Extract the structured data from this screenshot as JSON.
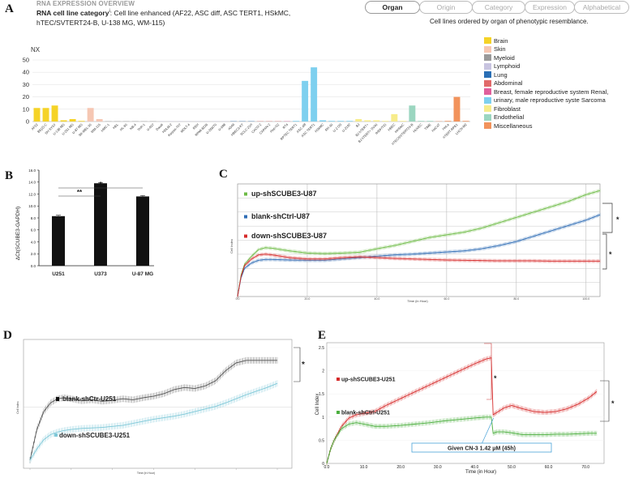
{
  "panel_a": {
    "letter": "A",
    "overview_label": "RNA EXPRESSION OVERVIEW",
    "category_label": "RNA cell line category",
    "category_sup": "i",
    "category_text": ": Cell line enhanced (AF22, ASC diff, ASC TERT1, HSkMC,",
    "category_text_2": "hTEC/SVTERT24-B, U-138 MG, WM-115)",
    "tabs": [
      {
        "label": "Organ",
        "active": true
      },
      {
        "label": "Origin",
        "active": false
      },
      {
        "label": "Category",
        "active": false
      },
      {
        "label": "Expression",
        "active": false
      },
      {
        "label": "Alphabetical",
        "active": false
      }
    ],
    "ordered_note": "Cell lines ordered by organ of phenotypic resemblance.",
    "legend": [
      {
        "label": "Brain",
        "color": "#f5d327"
      },
      {
        "label": "Skin",
        "color": "#f6c7b3"
      },
      {
        "label": "Myeloid",
        "color": "#9a9a9a"
      },
      {
        "label": "Lymphoid",
        "color": "#c8c4e0"
      },
      {
        "label": "Lung",
        "color": "#2a6fb5"
      },
      {
        "label": "Abdominal",
        "color": "#e16a6a"
      },
      {
        "label": "Breast, female reproductive system  Renal,",
        "color": "#e0609c"
      },
      {
        "label": "urinary, male reproductive syste  Sarcoma",
        "color": "#7ed0ef"
      },
      {
        "label": "Fibroblast",
        "color": "#f7ec8b"
      },
      {
        "label": "Endothelial",
        "color": "#9bd6c0"
      },
      {
        "label": "Miscellaneous",
        "color": "#f2935c"
      }
    ]
  },
  "chart_data": [
    {
      "id": "A",
      "type": "bar",
      "ylabel": "NX",
      "ylim": [
        0,
        50
      ],
      "yticks": [
        0,
        10,
        20,
        30,
        40,
        50
      ],
      "categories": [
        "AF22",
        "BE(2)-C",
        "SH-SY5Y",
        "U-138 MG",
        "U-251 MG",
        "U-87 MG",
        "SK-MEL-30",
        "WM-115",
        "HMC-1",
        "HEL",
        "HL-60",
        "NB-4",
        "THP-1",
        "U-937",
        "Daudi",
        "HDLM-2",
        "Karpas-707",
        "MOLT-4",
        "REH",
        "RPMI-8226",
        "U-266/70",
        "U-698",
        "A549",
        "HBEC3-KT",
        "SCLC-21H",
        "CACO-2",
        "CAPAN-2",
        "Hep-G2",
        "RT4",
        "RPTEC TERT1",
        "ASC diff",
        "ASC TERT1",
        "HSkMC",
        "RH-30",
        "U-2 OS",
        "U-2197",
        "BJ",
        "BJ hTERT+",
        "BJ hTERT+ SV40",
        "fHDF/TIG",
        "HBEC",
        "HHSteC",
        "hTEC/SVTERT24-B",
        "HUVEC",
        "TIME",
        "HaCaT",
        "HeLa",
        "hTERT-RPE1",
        "LHCN-M2"
      ],
      "values": [
        11,
        11,
        13,
        1,
        2,
        0.5,
        11,
        2,
        0.2,
        0.2,
        0.2,
        0.2,
        0.2,
        0.2,
        0.2,
        0.2,
        0.2,
        0.2,
        0.2,
        0.2,
        0.2,
        0.2,
        0.2,
        0.2,
        0.2,
        0.2,
        0.2,
        0.2,
        0.2,
        0.5,
        33,
        44,
        1,
        0.5,
        0.5,
        0.5,
        2,
        1,
        1,
        0.5,
        6,
        0.5,
        13,
        0.5,
        0.5,
        0.2,
        0.5,
        20,
        0.5
      ],
      "colors": [
        "#f5d327",
        "#f5d327",
        "#f5d327",
        "#f5d327",
        "#f5d327",
        "#f5d327",
        "#f6c7b3",
        "#f6c7b3",
        "#9a9a9a",
        "#9a9a9a",
        "#9a9a9a",
        "#9a9a9a",
        "#9a9a9a",
        "#9a9a9a",
        "#c8c4e0",
        "#c8c4e0",
        "#c8c4e0",
        "#c8c4e0",
        "#c8c4e0",
        "#c8c4e0",
        "#c8c4e0",
        "#c8c4e0",
        "#2a6fb5",
        "#2a6fb5",
        "#2a6fb5",
        "#e16a6a",
        "#e16a6a",
        "#e16a6a",
        "#e0609c",
        "#7ed0ef",
        "#7ed0ef",
        "#7ed0ef",
        "#7ed0ef",
        "#7ed0ef",
        "#7ed0ef",
        "#7ed0ef",
        "#f7ec8b",
        "#f7ec8b",
        "#f7ec8b",
        "#f7ec8b",
        "#f7ec8b",
        "#f7ec8b",
        "#9bd6c0",
        "#9bd6c0",
        "#9bd6c0",
        "#f2935c",
        "#f2935c",
        "#f2935c",
        "#f2935c"
      ]
    },
    {
      "id": "B",
      "type": "bar",
      "ylabel": "ΔCt(SCUBE3-GAPDH)",
      "ylim": [
        0,
        16
      ],
      "yticks": [
        "0.0",
        "2.0",
        "4.0",
        "6.0",
        "8.0",
        "10.0",
        "12.0",
        "14.0",
        "16.0"
      ],
      "categories": [
        "U251",
        "U373",
        "U-87 MG"
      ],
      "values": [
        8.3,
        13.8,
        11.6
      ],
      "errors": [
        0.15,
        0.1,
        0.15
      ],
      "significance": [
        {
          "from": 0,
          "to": 1,
          "label": "**"
        },
        {
          "from": 0,
          "to": 2,
          "label": "*"
        }
      ],
      "color": "#111111"
    },
    {
      "id": "C",
      "type": "line",
      "xlabel": "Time (in Hour)",
      "ylabel": "Cell Index",
      "xticks": [
        "0.0",
        "20.0",
        "40.0",
        "60.0",
        "80.0",
        "100.0"
      ],
      "series": [
        {
          "name": "up-shSCUBE3-U87",
          "color": "#6dbb45",
          "x": [
            0,
            1,
            2,
            4,
            6,
            8,
            10,
            15,
            20,
            25,
            30,
            35,
            40,
            45,
            50,
            55,
            60,
            65,
            70,
            75,
            80,
            85,
            90,
            95,
            100,
            104
          ],
          "y": [
            0,
            0.8,
            1.2,
            1.5,
            1.75,
            1.82,
            1.8,
            1.7,
            1.62,
            1.6,
            1.62,
            1.65,
            1.78,
            1.9,
            2.05,
            2.2,
            2.3,
            2.4,
            2.55,
            2.75,
            2.95,
            3.15,
            3.35,
            3.55,
            3.8,
            3.95
          ]
        },
        {
          "name": "blank-shCtrl-U87",
          "color": "#2f6db5",
          "x": [
            0,
            1,
            2,
            4,
            6,
            8,
            10,
            15,
            20,
            25,
            30,
            35,
            40,
            45,
            50,
            55,
            60,
            65,
            70,
            75,
            80,
            85,
            90,
            95,
            100,
            104
          ],
          "y": [
            0,
            0.7,
            1.05,
            1.25,
            1.35,
            1.38,
            1.38,
            1.36,
            1.35,
            1.35,
            1.4,
            1.45,
            1.5,
            1.55,
            1.58,
            1.62,
            1.66,
            1.7,
            1.78,
            1.9,
            2.05,
            2.25,
            2.45,
            2.65,
            2.85,
            3.05
          ]
        },
        {
          "name": "down-shSCUBE3-U87",
          "color": "#d62b2b",
          "x": [
            0,
            1,
            2,
            4,
            6,
            8,
            10,
            15,
            20,
            25,
            30,
            35,
            40,
            45,
            50,
            55,
            60,
            65,
            70,
            75,
            80,
            85,
            90,
            95,
            100,
            104
          ],
          "y": [
            0,
            0.75,
            1.15,
            1.4,
            1.55,
            1.58,
            1.55,
            1.45,
            1.4,
            1.4,
            1.45,
            1.48,
            1.45,
            1.42,
            1.4,
            1.38,
            1.36,
            1.35,
            1.34,
            1.33,
            1.33,
            1.33,
            1.32,
            1.32,
            1.32,
            1.32
          ]
        }
      ],
      "significance": [
        "*",
        "*"
      ]
    },
    {
      "id": "D",
      "type": "line",
      "xlabel": "Time (in Hour)",
      "ylabel": "Cell Index",
      "series": [
        {
          "name": "blank-shCtr-U251",
          "color": "#555555",
          "x": [
            0,
            2,
            4,
            6,
            8,
            10,
            12,
            15,
            18,
            21,
            24,
            27,
            30,
            33,
            36,
            39,
            42,
            45,
            48,
            51,
            54,
            57,
            60,
            63,
            66,
            69,
            72
          ],
          "y": [
            0,
            0.6,
            0.95,
            1.12,
            1.2,
            1.22,
            1.2,
            1.16,
            1.18,
            1.15,
            1.17,
            1.2,
            1.18,
            1.22,
            1.25,
            1.3,
            1.38,
            1.42,
            1.4,
            1.45,
            1.55,
            1.75,
            1.9,
            1.95,
            1.95,
            1.95,
            1.95
          ]
        },
        {
          "name": "down-shSCUBE3-U251",
          "color": "#7fc8d8",
          "x": [
            0,
            2,
            4,
            6,
            8,
            10,
            12,
            15,
            18,
            21,
            24,
            27,
            30,
            33,
            36,
            39,
            42,
            45,
            48,
            51,
            54,
            57,
            60,
            63,
            66,
            69,
            72
          ],
          "y": [
            0,
            0.22,
            0.4,
            0.5,
            0.55,
            0.58,
            0.6,
            0.62,
            0.63,
            0.64,
            0.66,
            0.68,
            0.72,
            0.76,
            0.8,
            0.83,
            0.86,
            0.9,
            0.95,
            1.0,
            1.05,
            1.12,
            1.2,
            1.28,
            1.35,
            1.42,
            1.5
          ]
        }
      ],
      "significance": [
        "*"
      ]
    },
    {
      "id": "E",
      "type": "line",
      "xlabel": "Time (in Hour)",
      "ylabel": "Cell Index",
      "ylim": [
        0,
        2.5
      ],
      "yticks": [
        "0",
        "0.5",
        "1",
        "1.5",
        "2",
        "2.5"
      ],
      "xticks": [
        "0.0",
        "10.0",
        "20.0",
        "30.0",
        "40.0",
        "50.0",
        "60.0",
        "70.0"
      ],
      "annotation": "Given CN-3 1.42 μM (45h)",
      "series": [
        {
          "name": "up-shSCUBE3-U251",
          "color": "#d62b2b",
          "x": [
            0,
            1,
            2,
            4,
            6,
            8,
            10,
            13,
            16,
            20,
            24,
            28,
            32,
            36,
            40,
            43,
            44.5,
            45,
            46,
            48,
            50,
            53,
            56,
            59,
            62,
            65,
            68,
            71,
            73
          ],
          "y": [
            0,
            0.3,
            0.5,
            0.8,
            0.98,
            1.05,
            1.08,
            1.12,
            1.25,
            1.4,
            1.55,
            1.7,
            1.85,
            2.0,
            2.15,
            2.25,
            2.28,
            1.05,
            1.1,
            1.2,
            1.25,
            1.18,
            1.12,
            1.1,
            1.12,
            1.18,
            1.28,
            1.42,
            1.55
          ]
        },
        {
          "name": "blank-shCtrl-U251",
          "color": "#4caf3f",
          "x": [
            0,
            1,
            2,
            4,
            6,
            8,
            10,
            13,
            16,
            20,
            24,
            28,
            32,
            36,
            40,
            43,
            44.5,
            45,
            46,
            48,
            50,
            53,
            56,
            59,
            62,
            65,
            68,
            71,
            73
          ],
          "y": [
            0,
            0.3,
            0.5,
            0.75,
            0.85,
            0.88,
            0.85,
            0.8,
            0.8,
            0.82,
            0.85,
            0.88,
            0.92,
            0.95,
            0.98,
            1.0,
            1.0,
            0.65,
            0.68,
            0.68,
            0.66,
            0.62,
            0.62,
            0.62,
            0.63,
            0.63,
            0.64,
            0.65,
            0.65
          ]
        }
      ],
      "significance": [
        "*",
        "*"
      ]
    }
  ],
  "letters": {
    "b": "B",
    "c": "C",
    "d": "D",
    "e": "E"
  }
}
